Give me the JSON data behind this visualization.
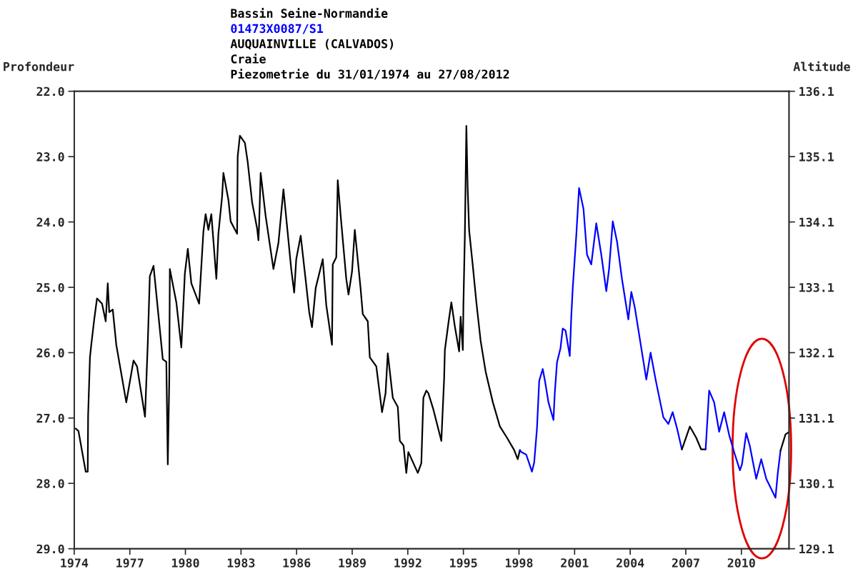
{
  "chart_data": {
    "type": "line",
    "title": "Bassin Seine-Normandie",
    "subtitle": "01473X0087/S1",
    "annotations": [
      "AUQUAINVILLE (CALVADOS)",
      "Craie",
      "Piezometrie du 31/01/1974 au 27/08/2012"
    ],
    "ylabel": "Profondeur",
    "y2label": "Altitude",
    "xlim": [
      1974,
      2012.57
    ],
    "xticks": [
      1974,
      1977,
      1980,
      1983,
      1986,
      1989,
      1992,
      1995,
      1998,
      2001,
      2004,
      2007,
      2010
    ],
    "ylim": [
      29.0,
      22.0
    ],
    "yticks": [
      {
        "value": 22,
        "label": "22.0"
      },
      {
        "value": 23,
        "label": "23.0"
      },
      {
        "value": 24,
        "label": "24.0"
      },
      {
        "value": 25,
        "label": "25.0"
      },
      {
        "value": 26,
        "label": "26.0"
      },
      {
        "value": 27,
        "label": "27.0"
      },
      {
        "value": 28,
        "label": "28.0"
      },
      {
        "value": 29,
        "label": "29.0"
      }
    ],
    "y2lim": [
      129.1,
      136.1
    ],
    "y2ticks": [
      {
        "value": 129.1,
        "label": "129.1"
      },
      {
        "value": 130.1,
        "label": "130.1"
      },
      {
        "value": 131.1,
        "label": "131.1"
      },
      {
        "value": 132.1,
        "label": "132.1"
      },
      {
        "value": 133.1,
        "label": "133.1"
      },
      {
        "value": 134.1,
        "label": "134.1"
      },
      {
        "value": 135.1,
        "label": "135.1"
      },
      {
        "value": 136.1,
        "label": "136.1"
      }
    ],
    "grid": false,
    "legend": false,
    "marker": "none",
    "line_style": "solid",
    "series": [
      {
        "color": "#000000",
        "x": [
          1974.08,
          1974.23,
          1974.62,
          1974.73,
          1974.75,
          1974.85,
          1974.92,
          1975.08,
          1975.23,
          1975.5,
          1975.7,
          1975.81,
          1975.89,
          1976.08,
          1976.27,
          1976.81,
          1977.2,
          1977.39,
          1977.82,
          1977.97,
          1978.08,
          1978.28,
          1978.78,
          1978.97,
          1979.05,
          1979.13,
          1979.16,
          1979.51,
          1979.78,
          1979.97,
          1980.13,
          1980.32,
          1980.74,
          1980.97,
          1981.09,
          1981.24,
          1981.4,
          1981.67,
          1981.78,
          1981.98,
          1982.05,
          1982.32,
          1982.44,
          1982.79,
          1982.82,
          1982.94,
          1983.21,
          1983.36,
          1983.6,
          1983.87,
          1983.94,
          1983.98,
          1984.06,
          1984.33,
          1984.75,
          1985.02,
          1985.29,
          1985.71,
          1985.87,
          1985.98,
          1986.22,
          1986.49,
          1986.68,
          1986.83,
          1987.03,
          1987.41,
          1987.6,
          1987.91,
          1987.95,
          1988.14,
          1988.22,
          1988.37,
          1988.68,
          1988.8,
          1988.99,
          1989.14,
          1989.45,
          1989.57,
          1989.84,
          1989.95,
          1990.3,
          1990.61,
          1990.8,
          1990.92,
          1991.19,
          1991.46,
          1991.57,
          1991.77,
          1991.92,
          1992.03,
          1992.54,
          1992.73,
          1992.84,
          1993.0,
          1993.11,
          1993.38,
          1993.81,
          1993.96,
          1994.0,
          1994.19,
          1994.35,
          1994.54,
          1994.77,
          1994.85,
          1994.97,
          1995.0,
          1995.08,
          1995.16,
          1995.23,
          1995.31,
          1995.5,
          1995.7,
          1995.93,
          1996.2,
          1996.59,
          1996.97,
          1997.35,
          1997.74,
          1997.93,
          1998.05
        ],
        "values": [
          27.16,
          27.2,
          27.82,
          27.82,
          26.97,
          26.07,
          25.88,
          25.49,
          25.17,
          25.25,
          25.52,
          24.94,
          25.38,
          25.34,
          25.88,
          26.76,
          26.12,
          26.21,
          26.98,
          25.85,
          24.83,
          24.67,
          26.1,
          26.14,
          27.71,
          26.4,
          24.72,
          25.23,
          25.92,
          24.79,
          24.41,
          24.94,
          25.25,
          24.15,
          23.88,
          24.12,
          23.88,
          24.87,
          24.18,
          23.61,
          23.25,
          23.66,
          23.99,
          24.18,
          23.0,
          22.68,
          22.79,
          23.08,
          23.7,
          24.1,
          24.28,
          24.02,
          23.25,
          23.91,
          24.72,
          24.32,
          23.5,
          24.72,
          25.08,
          24.57,
          24.21,
          24.89,
          25.38,
          25.61,
          25.01,
          24.57,
          25.27,
          25.88,
          24.65,
          24.54,
          23.36,
          23.88,
          24.87,
          25.11,
          24.76,
          24.12,
          25.01,
          25.41,
          25.52,
          26.07,
          26.21,
          26.91,
          26.62,
          26.01,
          26.69,
          26.83,
          27.35,
          27.42,
          27.84,
          27.52,
          27.84,
          27.69,
          26.69,
          26.58,
          26.62,
          26.87,
          27.35,
          26.4,
          25.96,
          25.55,
          25.23,
          25.6,
          25.98,
          25.45,
          25.96,
          25.27,
          24.18,
          22.53,
          23.48,
          24.13,
          24.65,
          25.23,
          25.82,
          26.29,
          26.76,
          27.13,
          27.3,
          27.49,
          27.63,
          27.49
        ]
      },
      {
        "color": "#0000ff",
        "x": [
          1998.05,
          1998.12,
          1998.39,
          1998.7,
          1998.82,
          1998.97,
          1999.09,
          1999.28,
          1999.4,
          1999.59,
          1999.86,
          1999.93,
          2000.05,
          2000.24,
          2000.36,
          2000.51,
          2000.74,
          2000.82,
          2000.9,
          2000.97,
          2001.09,
          2001.24,
          2001.48,
          2001.67,
          2001.9,
          2002.17,
          2002.44,
          2002.71,
          2002.86,
          2003.06,
          2003.29,
          2003.56,
          2003.9,
          2004.06,
          2004.25,
          2004.87,
          2005.1,
          2005.37,
          2005.79,
          2006.06,
          2006.29,
          2006.52,
          2006.79
        ],
        "values": [
          27.49,
          27.52,
          27.56,
          27.82,
          27.68,
          27.16,
          26.43,
          26.25,
          26.43,
          26.76,
          27.03,
          26.62,
          26.15,
          25.93,
          25.63,
          25.66,
          26.05,
          25.45,
          25.01,
          24.72,
          24.21,
          23.48,
          23.8,
          24.5,
          24.65,
          24.02,
          24.5,
          25.06,
          24.72,
          23.99,
          24.3,
          24.88,
          25.49,
          25.07,
          25.31,
          26.41,
          26.0,
          26.41,
          26.99,
          27.09,
          26.91,
          27.15,
          27.48
        ]
      },
      {
        "color": "#000000",
        "x": [
          2006.79,
          2007.22,
          2007.56,
          2007.83,
          2008.07
        ],
        "values": [
          27.48,
          27.13,
          27.3,
          27.48,
          27.48
        ]
      },
      {
        "color": "#0000ff",
        "x": [
          2008.07,
          2008.26,
          2008.53,
          2008.8,
          2009.07,
          2009.34,
          2009.65,
          2009.92,
          2010.03,
          2010.26,
          2010.45,
          2010.8,
          2011.07,
          2011.34,
          2011.84,
          2011.96,
          2012.11
        ],
        "values": [
          27.48,
          26.58,
          26.76,
          27.21,
          26.91,
          27.26,
          27.56,
          27.8,
          27.71,
          27.23,
          27.42,
          27.93,
          27.63,
          27.93,
          28.22,
          27.85,
          27.5
        ]
      },
      {
        "color": "#000000",
        "x": [
          2012.11,
          2012.38,
          2012.54
        ],
        "values": [
          27.5,
          27.25,
          27.22
        ]
      }
    ]
  }
}
